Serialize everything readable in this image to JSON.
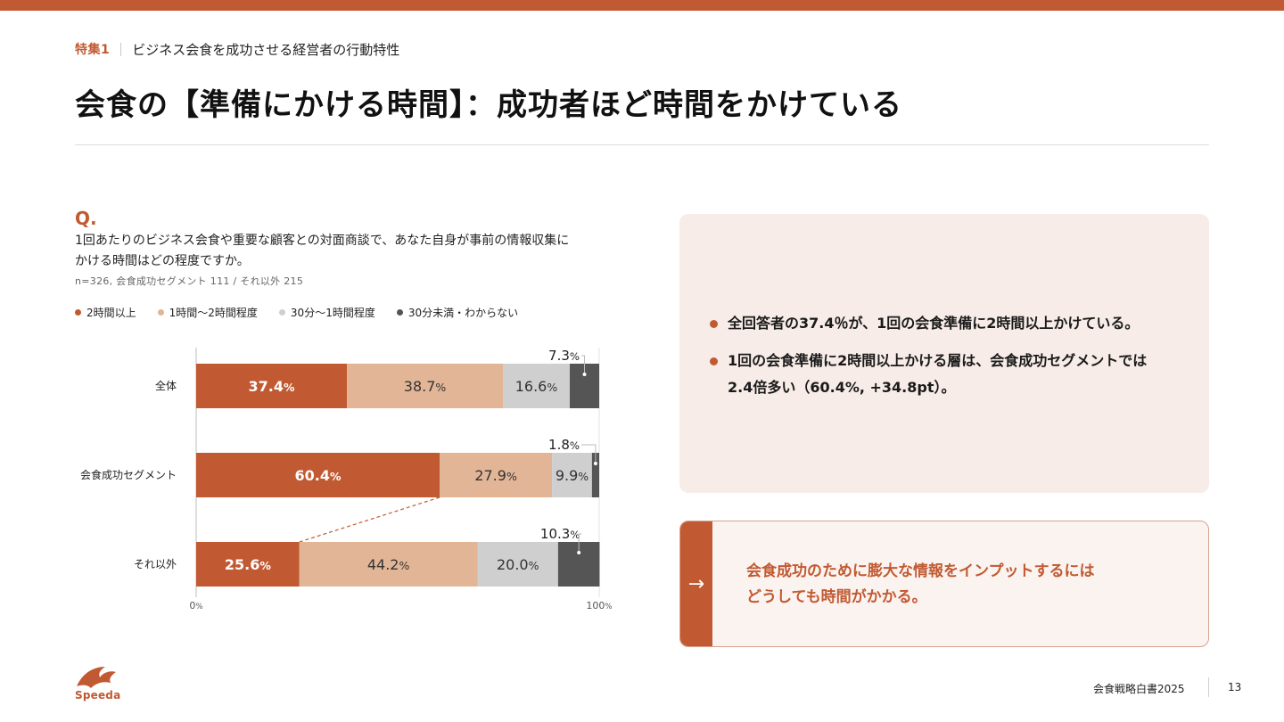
{
  "colors": {
    "accent": "#c15a32",
    "seg_2h_plus": "#c15a32",
    "seg_1_2h": "#e2b596",
    "seg_30m_1h": "#cfcfcf",
    "seg_lt30m": "#555555",
    "panel_bg": "#f7ece8"
  },
  "header": {
    "section_number": "特集1",
    "section_title": "ビジネス会食を成功させる経営者の行動特性",
    "page_title": "会食の【準備にかける時間】：成功者ほど時間をかけている"
  },
  "question": {
    "mark": "Q.",
    "text_line1": "1回あたりのビジネス会食や重要な顧客との対面商談で、あなた自身が事前の情報収集に",
    "text_line2": "かける時間はどの程度ですか。",
    "sample": "n=326, 会食成功セグメント 111 / それ以外 215"
  },
  "legend": [
    {
      "label": "2時間以上",
      "color": "#c15a32"
    },
    {
      "label": "1時間～2時間程度",
      "color": "#e2b596"
    },
    {
      "label": "30分～1時間程度",
      "color": "#cfcfcf"
    },
    {
      "label": "30分未満・わからない",
      "color": "#555555"
    }
  ],
  "chart_data": {
    "type": "bar",
    "orientation": "horizontal",
    "stacked": true,
    "categories": [
      "全体",
      "会食成功セグメント",
      "それ以外"
    ],
    "series": [
      {
        "name": "2時間以上",
        "values": [
          37.4,
          60.4,
          25.6
        ]
      },
      {
        "name": "1時間～2時間程度",
        "values": [
          38.7,
          27.9,
          44.2
        ]
      },
      {
        "name": "30分～1時間程度",
        "values": [
          16.6,
          9.9,
          20.0
        ]
      },
      {
        "name": "30分未満・わからない",
        "values": [
          7.3,
          1.8,
          10.3
        ]
      }
    ],
    "data_labels": [
      [
        "37.4%",
        "38.7%",
        "16.6%",
        "7.3%"
      ],
      [
        "60.4%",
        "27.9%",
        "9.9%",
        "1.8%"
      ],
      [
        "25.6%",
        "44.2%",
        "20.0%",
        "10.3%"
      ]
    ],
    "xlim": [
      0,
      100
    ],
    "x_tick_labels": [
      "0%",
      "100%"
    ],
    "legend_position": "top-left",
    "grid": false
  },
  "panel": {
    "points": [
      {
        "line1": "全回答者の37.4％が、1回の会食準備に2時間以上かけている。",
        "line2": ""
      },
      {
        "line1": "1回の会食準備に2時間以上かける層は、会食成功セグメントでは",
        "line2": "2.4倍多い（60.4%, +34.8pt）。"
      }
    ]
  },
  "callout": {
    "arrow": "→",
    "line1": "会食成功のために膨大な情報をインプットするには",
    "line2": "どうしても時間がかかる。"
  },
  "logo": {
    "text": "Speeda"
  },
  "footer": {
    "doc_title": "会食戦略白書2025",
    "page_number": "13"
  }
}
